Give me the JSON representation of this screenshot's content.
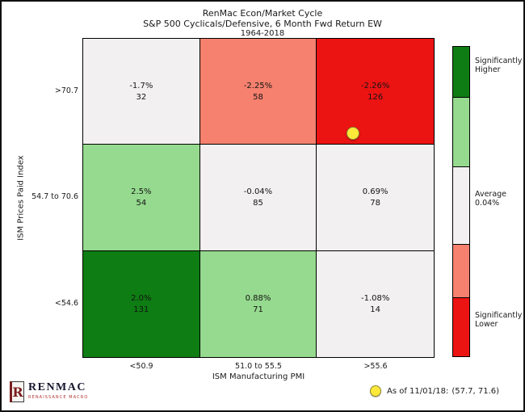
{
  "title": {
    "line1": "RenMac Econ/Market Cycle",
    "line2": "S&P 500 Cyclicals/Defensive, 6 Month Fwd Return EW",
    "line3": "1964-2018"
  },
  "chart_data": {
    "type": "heatmap",
    "title": "RenMac Econ/Market Cycle",
    "subtitle": "S&P 500 Cyclicals/Defensive, 6 Month Fwd Return EW",
    "period": "1964-2018",
    "xlabel": "ISM Manufacturing PMI",
    "ylabel": "ISM Prices Paid Index",
    "x_categories": [
      "<50.9",
      "51.0 to 55.5",
      ">55.6"
    ],
    "y_categories": [
      ">70.7",
      "54.7 to 70.6",
      "<54.6"
    ],
    "cells": [
      [
        {
          "return_label": "-1.7%",
          "return_pct": -1.7,
          "count": 32,
          "color": "#f2f0f0"
        },
        {
          "return_label": "-2.25%",
          "return_pct": -2.25,
          "count": 58,
          "color": "#f5816e"
        },
        {
          "return_label": "-2.26%",
          "return_pct": -2.26,
          "count": 126,
          "color": "#ec1313"
        }
      ],
      [
        {
          "return_label": "2.5%",
          "return_pct": 2.5,
          "count": 54,
          "color": "#95da8e"
        },
        {
          "return_label": "-0.04%",
          "return_pct": -0.04,
          "count": 85,
          "color": "#f2f0f0"
        },
        {
          "return_label": "0.69%",
          "return_pct": 0.69,
          "count": 78,
          "color": "#f2f0f0"
        }
      ],
      [
        {
          "return_label": "2.0%",
          "return_pct": 2.0,
          "count": 131,
          "color": "#0e7d13"
        },
        {
          "return_label": "0.88%",
          "return_pct": 0.88,
          "count": 71,
          "color": "#95da8e"
        },
        {
          "return_label": "-1.08%",
          "return_pct": -1.08,
          "count": 14,
          "color": "#f2f0f0"
        }
      ]
    ],
    "legend": {
      "position": "right",
      "segments": [
        {
          "color": "#0e7d13",
          "label": "Significantly Higher"
        },
        {
          "color": "#95da8e",
          "label": ""
        },
        {
          "color": "#f2f0f0",
          "label": "Average 0.04%"
        },
        {
          "color": "#f5816e",
          "label": ""
        },
        {
          "color": "#ec1313",
          "label": "Significantly Lower"
        }
      ]
    },
    "marker": {
      "x": 57.7,
      "y": 71.6,
      "as_of": "11/01/18",
      "color": "#ffe83a",
      "cell": "row >70.7, col >55.6"
    }
  },
  "footer": {
    "logo_initial": "R",
    "logo_text": "RENMAC",
    "logo_subtext": "RENAISSANCE MACRO",
    "asof_label": "As of 11/01/18:",
    "asof_coords": "(57.7, 71.6)"
  }
}
